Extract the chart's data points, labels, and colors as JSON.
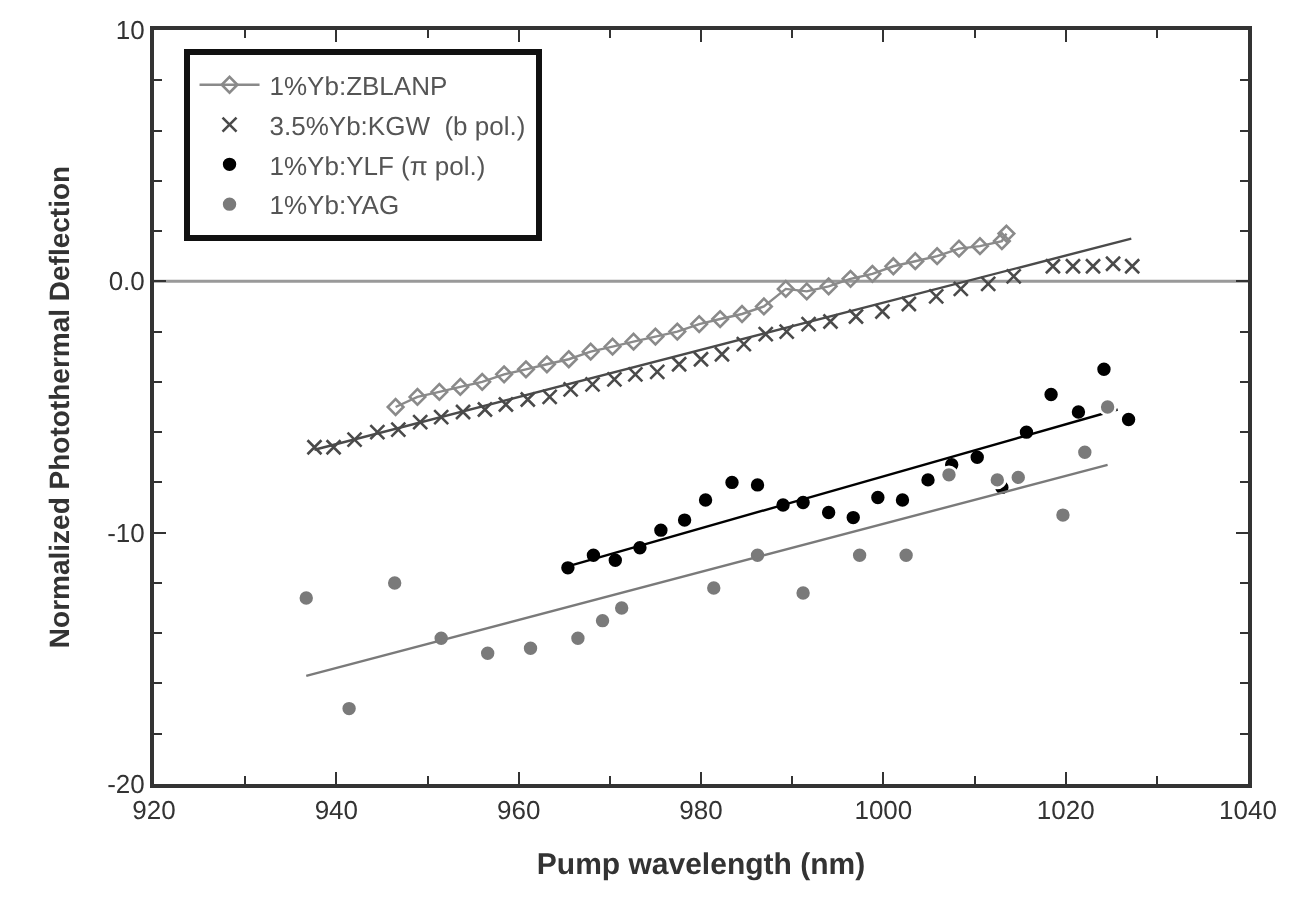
{
  "chart_data": {
    "type": "scatter",
    "xlabel": "Pump wavelength (nm)",
    "ylabel": "Normalized Photothermal Deflection",
    "xlim": [
      920,
      1040
    ],
    "xticks": [
      920,
      940,
      960,
      980,
      1000,
      1020,
      1040
    ],
    "ylim": [
      -20,
      10
    ],
    "yticks": [
      -20,
      -10,
      {
        "value": 0,
        "label": "0.0"
      },
      10
    ],
    "legend": "top left",
    "grid": false,
    "ref_lines": [
      {
        "axis": "y",
        "value": 0,
        "color": "#999999"
      }
    ],
    "series": [
      {
        "name": "1%Yb:ZBLANP",
        "type": "line",
        "marker": "diamond",
        "color": "#8a8a8a",
        "x": [
          946.5,
          948.9,
          951.3,
          953.6,
          956.0,
          958.4,
          960.8,
          963.1,
          965.5,
          967.9,
          970.3,
          972.6,
          975.0,
          977.4,
          979.8,
          982.1,
          984.5,
          986.9,
          989.3,
          991.6,
          994.0,
          996.4,
          998.8,
          1001.1,
          1003.5,
          1005.9,
          1008.3,
          1010.6,
          1013.0,
          1013.5
        ],
        "values": [
          -5.0,
          -4.6,
          -4.4,
          -4.2,
          -4.0,
          -3.7,
          -3.5,
          -3.3,
          -3.1,
          -2.8,
          -2.6,
          -2.4,
          -2.2,
          -2.0,
          -1.7,
          -1.5,
          -1.3,
          -1.0,
          -0.3,
          -0.4,
          -0.2,
          0.1,
          0.3,
          0.6,
          0.8,
          1.0,
          1.3,
          1.4,
          1.6,
          1.9
        ]
      },
      {
        "name": "3.5%Yb:KGW  (b pol.)",
        "marker": "cross",
        "color": "#4a4a4a",
        "x": [
          937.6,
          939.7,
          942.0,
          944.5,
          946.8,
          949.2,
          951.5,
          953.9,
          956.3,
          958.6,
          961.0,
          963.4,
          965.7,
          968.1,
          970.5,
          972.8,
          975.2,
          977.6,
          980.0,
          982.3,
          984.7,
          987.1,
          989.4,
          991.8,
          994.2,
          997.0,
          999.9,
          1002.8,
          1005.8,
          1008.5,
          1011.5,
          1014.3,
          1018.6,
          1020.8,
          1023.0,
          1025.2,
          1027.3
        ],
        "values": [
          -6.6,
          -6.6,
          -6.3,
          -6.0,
          -5.9,
          -5.6,
          -5.4,
          -5.2,
          -5.1,
          -4.9,
          -4.7,
          -4.6,
          -4.3,
          -4.1,
          -3.9,
          -3.7,
          -3.6,
          -3.3,
          -3.1,
          -2.9,
          -2.5,
          -2.1,
          -2.0,
          -1.7,
          -1.6,
          -1.4,
          -1.2,
          -0.9,
          -0.6,
          -0.3,
          -0.1,
          0.2,
          0.6,
          0.6,
          0.6,
          0.7,
          0.6
        ]
      },
      {
        "type": "line",
        "marker": "none",
        "color": "#4a4a4a",
        "x": [
          937.6,
          1027.2
        ],
        "values": [
          -6.7,
          1.7
        ]
      },
      {
        "name": "1%Yb:YLF (π pol.)",
        "marker": "circle",
        "color": "#000000",
        "x": [
          965.4,
          968.2,
          970.6,
          973.3,
          975.6,
          978.2,
          980.5,
          983.4,
          986.2,
          989.0,
          991.2,
          994.0,
          996.7,
          999.4,
          1002.1,
          1004.9,
          1007.5,
          1010.3,
          1013.0,
          1015.7,
          1018.4,
          1021.4,
          1024.2,
          1026.9
        ],
        "values": [
          -11.4,
          -10.9,
          -11.1,
          -10.6,
          -9.9,
          -9.5,
          -8.7,
          -8.0,
          -8.1,
          -8.9,
          -8.8,
          -9.2,
          -9.4,
          -8.6,
          -8.7,
          -7.9,
          -7.3,
          -7.0,
          -8.2,
          -6.0,
          -4.5,
          -5.2,
          -3.5,
          -5.5
        ]
      },
      {
        "type": "line",
        "marker": "none",
        "color": "#000000",
        "x": [
          964.8,
          1025.7
        ],
        "values": [
          -11.4,
          -5.1
        ]
      },
      {
        "name": "1%Yb:YAG",
        "marker": "circle",
        "color": "#7a7a7a",
        "x": [
          936.7,
          941.4,
          946.4,
          951.5,
          956.6,
          961.3,
          966.5,
          969.2,
          971.3,
          981.4,
          986.2,
          991.2,
          997.4,
          1002.5,
          1007.2,
          1012.5,
          1014.8,
          1019.7,
          1022.1,
          1024.6
        ],
        "values": [
          -12.6,
          -17.0,
          -12.0,
          -14.2,
          -14.8,
          -14.6,
          -14.2,
          -13.5,
          -13.0,
          -12.2,
          -10.9,
          -12.4,
          -10.9,
          -10.9,
          -7.7,
          -7.9,
          -7.8,
          -9.3,
          -6.8,
          -5.0
        ]
      },
      {
        "type": "line",
        "marker": "none",
        "color": "#7a7a7a",
        "x": [
          936.7,
          1024.6
        ],
        "values": [
          -15.7,
          -7.3
        ]
      }
    ]
  }
}
